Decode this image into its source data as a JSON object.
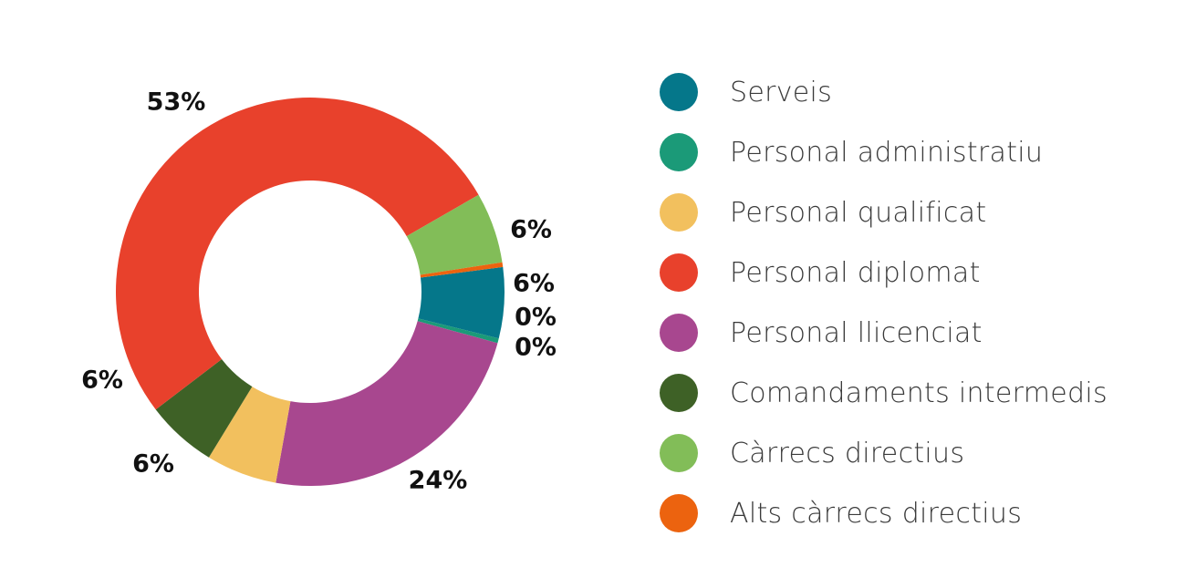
{
  "chart_data": {
    "type": "pie",
    "variant": "donut",
    "legend_position": "right",
    "slices": [
      {
        "name": "Serveis",
        "value": 6,
        "label": "6%",
        "color": "#05778a"
      },
      {
        "name": "Personal administratiu",
        "value": 0.4,
        "label": "0%",
        "color": "#1b9a78"
      },
      {
        "name": "Personal qualificat",
        "value": 6,
        "label": "6%",
        "color": "#f2c05e"
      },
      {
        "name": "Personal diplomat",
        "value": 53,
        "label": "53%",
        "color": "#e8412c"
      },
      {
        "name": "Personal llicenciat",
        "value": 24,
        "label": "24%",
        "color": "#a8478f"
      },
      {
        "name": "Comandaments intermedis",
        "value": 6,
        "label": "6%",
        "color": "#3e6126"
      },
      {
        "name": "Càrrecs directius",
        "value": 6,
        "label": "6%",
        "color": "#82bd58"
      },
      {
        "name": "Alts càrrecs directius",
        "value": 0.4,
        "label": "0%",
        "color": "#ec630f"
      }
    ]
  }
}
